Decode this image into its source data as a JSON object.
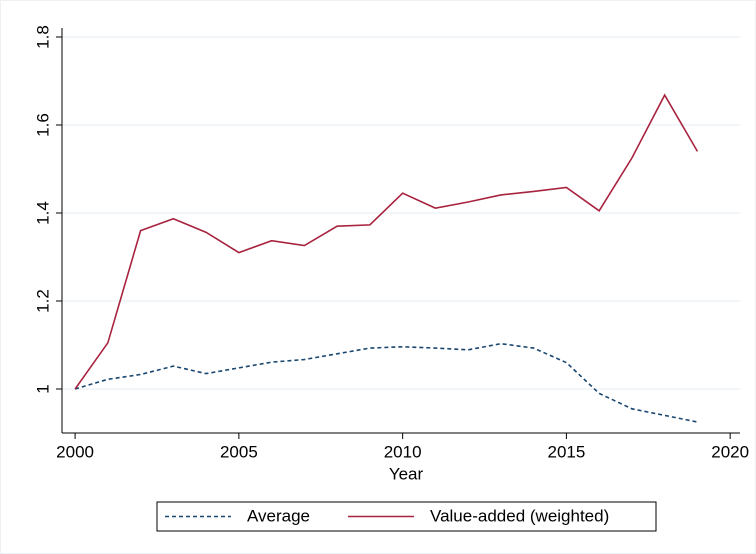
{
  "chart_data": {
    "type": "line",
    "x": [
      2000,
      2001,
      2002,
      2003,
      2004,
      2005,
      2006,
      2007,
      2008,
      2009,
      2010,
      2011,
      2012,
      2013,
      2014,
      2015,
      2016,
      2017,
      2018,
      2019
    ],
    "series": [
      {
        "name": "Average",
        "color": "#1a476f",
        "dashed": true,
        "values": [
          1.0,
          1.022,
          1.033,
          1.052,
          1.035,
          1.048,
          1.061,
          1.067,
          1.08,
          1.093,
          1.096,
          1.093,
          1.089,
          1.103,
          1.093,
          1.06,
          0.99,
          0.955,
          0.94,
          0.925
        ]
      },
      {
        "name": "Value-added (weighted)",
        "color": "#a8233f",
        "dashed": false,
        "values": [
          1.0,
          1.105,
          1.36,
          1.387,
          1.356,
          1.31,
          1.337,
          1.326,
          1.37,
          1.373,
          1.445,
          1.411,
          1.425,
          1.441,
          1.449,
          1.458,
          1.405,
          1.525,
          1.668,
          1.54
        ]
      }
    ],
    "xlabel": "Year",
    "xlim": [
      1999.6,
      2020.3
    ],
    "xticks": [
      2000,
      2005,
      2010,
      2015,
      2020
    ],
    "ylim": [
      0.9,
      1.8
    ],
    "yticks": [
      1,
      1.2,
      1.4,
      1.6,
      1.8
    ],
    "grid": true,
    "legend": "bottom"
  }
}
